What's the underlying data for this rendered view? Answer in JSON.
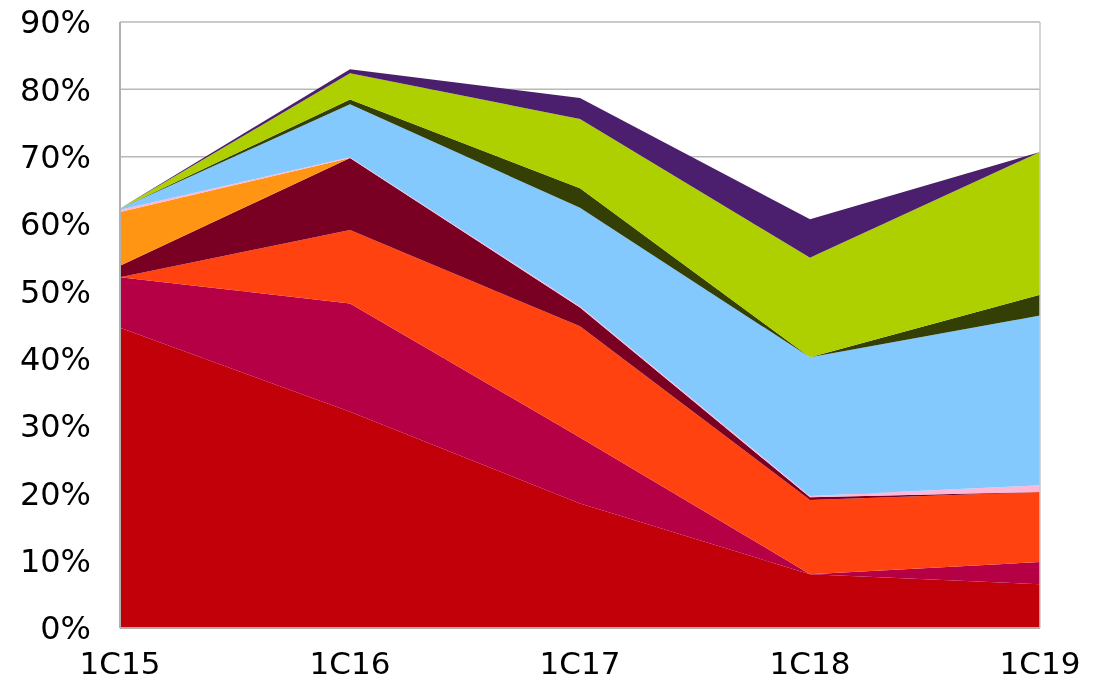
{
  "chart_data": {
    "type": "area",
    "stacked": true,
    "categories": [
      "1C15",
      "1C16",
      "1C17",
      "1C18",
      "1C19"
    ],
    "series": [
      {
        "color": "#c20009",
        "values": [
          44.6,
          32.1,
          18.5,
          8.0,
          6.5
        ]
      },
      {
        "color": "#b50045",
        "values": [
          7.5,
          16.1,
          9.8,
          0,
          3.3
        ]
      },
      {
        "color": "#ff4210",
        "values": [
          0,
          10.9,
          16.5,
          11.0,
          10.4
        ]
      },
      {
        "color": "#7a0023",
        "values": [
          1.7,
          10.7,
          2.8,
          0.4,
          0
        ]
      },
      {
        "color": "#ff9512",
        "values": [
          8.0,
          0,
          null,
          null,
          null
        ]
      },
      {
        "color": "#ffb7d9",
        "values": [
          0.3,
          0.1,
          0.2,
          0.2,
          1.0
        ]
      },
      {
        "color": "#83c9fe",
        "values": [
          0.2,
          7.9,
          14.6,
          20.6,
          25.2
        ]
      },
      {
        "color": "#333f05",
        "values": [
          0,
          0.7,
          2.9,
          0,
          3.1
        ]
      },
      {
        "color": "#afd000",
        "values": [
          0,
          3.9,
          10.3,
          14.8,
          21.2
        ]
      },
      {
        "color": "#4b1f6e",
        "values": [
          0,
          0.6,
          3.1,
          5.7,
          0
        ]
      }
    ],
    "ylim": [
      0,
      90
    ],
    "yticks": [
      {
        "value": 0,
        "label": "0%"
      },
      {
        "value": 10,
        "label": "10%"
      },
      {
        "value": 20,
        "label": "20%"
      },
      {
        "value": 30,
        "label": "30%"
      },
      {
        "value": 40,
        "label": "40%"
      },
      {
        "value": 50,
        "label": "50%"
      },
      {
        "value": 60,
        "label": "60%"
      },
      {
        "value": 70,
        "label": "70%"
      },
      {
        "value": 80,
        "label": "80%"
      },
      {
        "value": 90,
        "label": "90%"
      }
    ],
    "grid": "y",
    "legend": false
  }
}
